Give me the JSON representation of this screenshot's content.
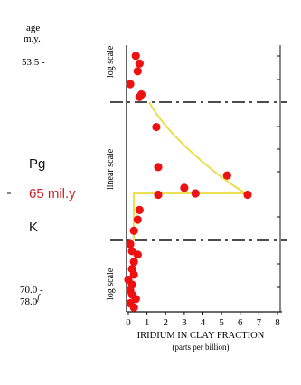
{
  "chart_data": {
    "type": "scatter",
    "title": "",
    "xlabel": "IRIDIUM IN CLAY FRACTION",
    "xlabel_sub": "(parts per billion)",
    "x_ticks": [
      "0",
      "1",
      "2",
      "3",
      "4",
      "5",
      "6",
      "7",
      "8"
    ],
    "xlim": [
      0,
      8
    ],
    "grid": false,
    "panels": [
      {
        "id": "upper",
        "scale_label": "log scale",
        "scale": "log"
      },
      {
        "id": "middle",
        "scale_label": "linear scale",
        "scale": "linear"
      },
      {
        "id": "lower",
        "scale_label": "log scale",
        "scale": "log"
      }
    ],
    "age_labels": {
      "header_line1": "age",
      "header_line2": "m.y.",
      "top": "53.5 -",
      "bottom_1": "70.0 -",
      "bottom_2": "78.0"
    },
    "period_labels": {
      "upper": "Pg",
      "boundary": "65 mil.y",
      "lower": "K"
    },
    "colors": {
      "points": "#ee1111",
      "curve": "#e8dc3a",
      "boundary_label": "#cc2222",
      "axes": "#111111"
    },
    "series": [
      {
        "panel": "upper",
        "points": [
          {
            "x": 0.4,
            "y": 0.9
          },
          {
            "x": 0.6,
            "y": 0.75
          },
          {
            "x": 0.5,
            "y": 0.6
          },
          {
            "x": 0.1,
            "y": 0.35
          },
          {
            "x": 0.7,
            "y": 0.15
          },
          {
            "x": 0.6,
            "y": 0.1
          }
        ]
      },
      {
        "panel": "middle",
        "points": [
          {
            "x": 1.5,
            "y": 0.82
          },
          {
            "x": 1.6,
            "y": 0.53
          },
          {
            "x": 5.3,
            "y": 0.47
          },
          {
            "x": 3.0,
            "y": 0.38
          },
          {
            "x": 3.6,
            "y": 0.34
          },
          {
            "x": 1.6,
            "y": 0.33
          },
          {
            "x": 6.4,
            "y": 0.33
          },
          {
            "x": 0.6,
            "y": 0.22
          },
          {
            "x": 0.5,
            "y": 0.15
          },
          {
            "x": 0.3,
            "y": 0.07
          }
        ]
      },
      {
        "panel": "lower",
        "points": [
          {
            "x": 0.1,
            "y": 0.95
          },
          {
            "x": 0.2,
            "y": 0.85
          },
          {
            "x": 0.5,
            "y": 0.8
          },
          {
            "x": 0.3,
            "y": 0.7
          },
          {
            "x": 0.2,
            "y": 0.6
          },
          {
            "x": 0.3,
            "y": 0.52
          },
          {
            "x": 0.0,
            "y": 0.45
          },
          {
            "x": 0.2,
            "y": 0.38
          },
          {
            "x": 0.1,
            "y": 0.3
          },
          {
            "x": 0.2,
            "y": 0.24
          },
          {
            "x": 0.4,
            "y": 0.18
          },
          {
            "x": 0.1,
            "y": 0.12
          },
          {
            "x": 0.3,
            "y": 0.06
          }
        ]
      }
    ]
  }
}
